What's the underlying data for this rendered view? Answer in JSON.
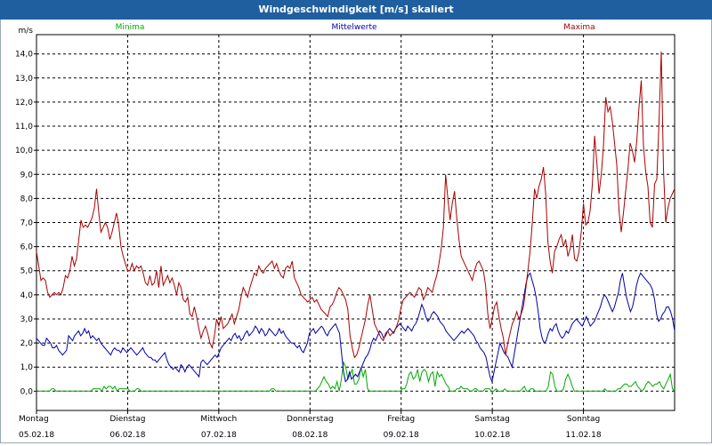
{
  "window": {
    "title": "Windgeschwindigkeit [m/s] skaliert"
  },
  "chart_data": {
    "type": "line",
    "title": "Windgeschwindigkeit [m/s] skaliert",
    "ylabel": "m/s",
    "xlabel": "",
    "ylim": [
      -0.8,
      14.8
    ],
    "yticks": [
      "0,0",
      "1,0",
      "2,0",
      "3,0",
      "4,0",
      "5,0",
      "6,0",
      "7,0",
      "8,0",
      "9,0",
      "10,0",
      "11,0",
      "12,0",
      "13,0",
      "14,0"
    ],
    "days": [
      {
        "weekday": "Montag",
        "date": "05.02.18"
      },
      {
        "weekday": "Dienstag",
        "date": "06.02.18"
      },
      {
        "weekday": "Mittwoch",
        "date": "07.02.18"
      },
      {
        "weekday": "Donnerstag",
        "date": "08.02.18"
      },
      {
        "weekday": "Freitag",
        "date": "09.02.18"
      },
      {
        "weekday": "Samstag",
        "date": "10.02.18"
      },
      {
        "weekday": "Sonntag",
        "date": "11.02.18"
      }
    ],
    "grid": true,
    "series": [
      {
        "name": "Minima",
        "color": "#00aa00",
        "values": [
          0.0,
          0.0,
          0.0,
          0.0,
          0.0,
          0.0,
          0.0,
          0.1,
          0.1,
          0.0,
          0.0,
          0.0,
          0.0,
          0.0,
          0.0,
          0.0,
          0.0,
          0.0,
          0.0,
          0.0,
          0.0,
          0.0,
          0.0,
          0.0,
          0.0,
          0.0,
          0.1,
          0.1,
          0.1,
          0.1,
          0.0,
          0.2,
          0.1,
          0.2,
          0.2,
          0.1,
          0.2,
          0.0,
          0.1,
          0.1,
          0.1,
          0.1,
          0.1,
          0.0,
          0.0,
          0.0,
          0.1,
          0.1,
          0.0,
          0.0,
          0.0,
          0.0,
          0.0,
          0.0,
          0.0,
          0.0,
          0.0,
          0.0,
          0.0,
          0.0,
          0.0,
          0.0,
          0.0,
          0.0,
          0.0,
          0.0,
          0.0,
          0.0,
          0.0,
          0.0,
          0.0,
          0.0,
          0.0,
          0.0,
          0.0,
          0.0,
          0.0,
          0.0,
          0.0,
          0.0,
          0.0,
          0.0,
          0.0,
          0.0,
          0.0,
          0.0,
          0.0,
          0.0,
          0.0,
          0.0,
          0.0,
          0.0,
          0.0,
          0.0,
          0.0,
          0.0,
          0.0,
          0.0,
          0.0,
          0.0,
          0.0,
          0.0,
          0.0,
          0.0,
          0.0,
          0.0,
          0.0,
          0.0,
          0.1,
          0.1,
          0.0,
          0.0,
          0.0,
          0.0,
          0.0,
          0.0,
          0.0,
          0.0,
          0.0,
          0.0,
          0.0,
          0.0,
          0.0,
          0.0,
          0.0,
          0.0,
          0.0,
          0.0,
          0.0,
          0.1,
          0.2,
          0.4,
          0.6,
          0.4,
          0.3,
          0.1,
          0.2,
          0.1,
          0.4,
          0.0,
          0.5,
          1.2,
          1.0,
          0.5,
          0.7,
          0.9,
          0.3,
          0.3,
          0.5,
          1.0,
          0.6,
          0.9,
          0.1,
          0.0,
          0.0,
          0.0,
          0.0,
          0.0,
          0.0,
          0.0,
          0.0,
          0.0,
          0.0,
          0.0,
          0.0,
          0.0,
          0.0,
          0.0,
          0.1,
          0.1,
          0.3,
          0.7,
          0.8,
          0.5,
          0.6,
          0.9,
          0.4,
          0.8,
          0.9,
          0.8,
          0.4,
          0.7,
          0.8,
          0.2,
          0.8,
          0.6,
          0.7,
          0.5,
          0.3,
          0.2,
          0.0,
          0.0,
          0.0,
          0.1,
          0.1,
          0.2,
          0.1,
          0.1,
          0.1,
          0.0,
          0.0,
          0.1,
          0.1,
          0.0,
          0.0,
          0.0,
          0.1,
          0.1,
          0.1,
          0.0,
          0.0,
          0.1,
          0.0,
          0.0,
          0.0,
          0.1,
          0.0,
          0.0,
          0.0,
          0.0,
          0.0,
          0.0,
          0.0,
          0.1,
          0.2,
          0.0,
          0.0,
          0.1,
          0.1,
          0.0,
          0.0,
          0.0,
          0.0,
          0.0,
          0.0,
          0.2,
          0.8,
          0.7,
          0.2,
          0.0,
          0.0,
          0.0,
          0.1,
          0.5,
          0.7,
          0.5,
          0.2,
          0.0,
          0.0,
          0.0,
          0.0,
          0.0,
          0.0,
          0.0,
          0.0,
          0.0,
          0.0,
          0.0,
          0.0,
          0.0,
          0.0,
          0.1,
          0.0,
          0.0,
          0.0,
          0.0,
          0.0,
          0.1,
          0.1,
          0.2,
          0.3,
          0.3,
          0.2,
          0.2,
          0.3,
          0.4,
          0.2,
          0.1,
          0.0,
          0.1,
          0.3,
          0.4,
          0.3,
          0.2,
          0.3,
          0.3,
          0.4,
          0.2,
          0.1,
          0.3,
          0.5,
          0.7,
          0.1,
          0.0
        ]
      },
      {
        "name": "Mittelwerte",
        "color": "#0000aa",
        "values": [
          2.2,
          2.1,
          2.0,
          1.9,
          1.9,
          2.2,
          2.1,
          2.0,
          1.8,
          1.8,
          1.9,
          1.7,
          1.6,
          1.5,
          1.6,
          1.7,
          2.3,
          2.2,
          2.1,
          2.3,
          2.4,
          2.5,
          2.3,
          2.4,
          2.6,
          2.4,
          2.5,
          2.2,
          2.3,
          2.2,
          2.1,
          2.2,
          2.0,
          1.9,
          1.8,
          1.7,
          1.6,
          1.5,
          1.7,
          1.8,
          1.7,
          1.7,
          1.6,
          1.8,
          1.7,
          1.6,
          1.7,
          1.8,
          1.7,
          1.6,
          1.5,
          1.6,
          1.7,
          1.8,
          1.6,
          1.5,
          1.4,
          1.4,
          1.3,
          1.3,
          1.2,
          1.3,
          1.4,
          1.5,
          1.6,
          1.3,
          1.1,
          1.0,
          0.9,
          1.0,
          0.9,
          0.8,
          1.1,
          1.0,
          0.8,
          1.0,
          1.1,
          1.0,
          0.9,
          0.8,
          0.7,
          0.6,
          1.2,
          1.3,
          1.2,
          1.1,
          1.2,
          1.3,
          1.4,
          1.5,
          1.4,
          1.6,
          1.8,
          1.9,
          2.0,
          2.1,
          2.2,
          2.1,
          2.3,
          2.4,
          2.2,
          2.3,
          2.1,
          2.2,
          2.4,
          2.5,
          2.3,
          2.4,
          2.5,
          2.7,
          2.6,
          2.4,
          2.6,
          2.5,
          2.3,
          2.4,
          2.6,
          2.5,
          2.4,
          2.3,
          2.4,
          2.6,
          2.4,
          2.5,
          2.3,
          2.2,
          2.1,
          2.0,
          2.0,
          1.9,
          1.8,
          1.9,
          1.7,
          1.6,
          1.8,
          2.0,
          2.4,
          2.5,
          2.6,
          2.4,
          2.5,
          2.6,
          2.7,
          2.6,
          2.4,
          2.3,
          2.5,
          2.6,
          2.7,
          2.8,
          2.6,
          2.4,
          1.6,
          0.8,
          0.4,
          0.5,
          0.8,
          0.5,
          0.6,
          0.7,
          0.6,
          0.8,
          1.0,
          1.2,
          1.4,
          1.5,
          1.7,
          2.0,
          2.2,
          2.1,
          2.3,
          2.5,
          2.4,
          2.2,
          2.3,
          2.5,
          2.6,
          2.5,
          2.4,
          2.6,
          2.7,
          2.8,
          2.7,
          2.6,
          2.5,
          2.7,
          2.6,
          2.5,
          2.7,
          2.8,
          3.0,
          3.3,
          3.6,
          3.4,
          3.1,
          2.9,
          3.0,
          3.2,
          3.3,
          3.2,
          3.1,
          2.9,
          2.8,
          2.7,
          2.5,
          2.4,
          2.3,
          2.2,
          2.1,
          2.2,
          2.3,
          2.4,
          2.5,
          2.4,
          2.5,
          2.6,
          2.5,
          2.4,
          2.3,
          2.1,
          2.0,
          1.8,
          1.7,
          1.6,
          1.4,
          1.0,
          0.6,
          0.4,
          0.8,
          1.2,
          1.6,
          2.0,
          1.8,
          1.6,
          1.5,
          1.4,
          1.2,
          1.0,
          1.5,
          2.0,
          2.5,
          3.0,
          3.5,
          4.0,
          4.5,
          4.8,
          4.9,
          4.6,
          4.3,
          3.9,
          3.3,
          2.6,
          2.2,
          2.0,
          2.1,
          2.4,
          2.6,
          2.5,
          2.7,
          2.8,
          2.5,
          2.3,
          2.2,
          2.3,
          2.5,
          2.4,
          2.6,
          2.8,
          2.9,
          3.0,
          2.9,
          2.8,
          2.7,
          2.9,
          3.1,
          2.9,
          2.7,
          2.8,
          2.9,
          3.1,
          3.3,
          3.5,
          3.8,
          4.0,
          3.9,
          3.7,
          3.5,
          3.3,
          3.5,
          3.8,
          4.1,
          4.6,
          4.9,
          4.4,
          3.9,
          3.6,
          3.3,
          3.5,
          3.9,
          4.4,
          4.7,
          4.9,
          4.8,
          4.7,
          4.6,
          4.5,
          4.4,
          4.2,
          3.8,
          3.2,
          2.9,
          3.0,
          3.2,
          3.3,
          3.5,
          3.5,
          3.3,
          3.0,
          2.5
        ]
      },
      {
        "name": "Maxima",
        "color": "#aa0000",
        "values": [
          5.8,
          5.2,
          4.6,
          4.7,
          4.6,
          4.1,
          3.9,
          4.0,
          4.1,
          4.0,
          4.1,
          4.0,
          4.3,
          4.8,
          4.7,
          5.0,
          5.6,
          5.2,
          5.5,
          6.3,
          7.1,
          6.8,
          6.9,
          6.8,
          7.0,
          7.2,
          7.6,
          8.4,
          7.4,
          6.6,
          6.8,
          7.0,
          6.8,
          6.3,
          6.6,
          7.0,
          7.4,
          6.9,
          6.0,
          5.6,
          5.3,
          5.0,
          5.0,
          5.3,
          5.0,
          5.2,
          5.1,
          5.2,
          4.9,
          4.5,
          4.4,
          4.8,
          4.4,
          4.5,
          5.0,
          4.3,
          5.2,
          4.4,
          4.6,
          4.8,
          4.5,
          4.7,
          4.4,
          4.0,
          4.5,
          4.3,
          3.8,
          3.7,
          3.9,
          3.2,
          3.1,
          3.5,
          3.1,
          2.6,
          2.2,
          2.5,
          2.7,
          2.4,
          2.0,
          1.8,
          2.3,
          3.0,
          2.7,
          3.1,
          2.6,
          2.7,
          2.8,
          3.0,
          3.2,
          2.8,
          3.1,
          3.4,
          3.9,
          4.3,
          4.1,
          3.9,
          4.3,
          4.6,
          4.9,
          4.8,
          5.2,
          5.0,
          4.9,
          5.1,
          5.2,
          5.3,
          5.4,
          5.1,
          5.3,
          5.0,
          4.8,
          4.7,
          5.1,
          5.2,
          5.1,
          5.4,
          4.7,
          4.5,
          4.3,
          4.0,
          3.9,
          3.8,
          3.7,
          3.8,
          3.9,
          3.7,
          3.8,
          3.6,
          3.4,
          3.3,
          3.2,
          3.1,
          3.5,
          3.6,
          3.8,
          4.1,
          4.3,
          4.2,
          4.0,
          3.8,
          3.4,
          2.3,
          1.8,
          1.4,
          1.5,
          1.8,
          2.2,
          2.6,
          3.0,
          3.6,
          4.0,
          3.4,
          2.8,
          2.6,
          2.4,
          2.2,
          2.1,
          2.4,
          2.5,
          2.3,
          2.4,
          2.5,
          2.7,
          3.0,
          3.5,
          3.8,
          3.9,
          4.0,
          4.1,
          4.0,
          3.9,
          4.1,
          4.3,
          4.2,
          3.8,
          4.0,
          4.3,
          4.2,
          4.1,
          4.5,
          4.8,
          5.3,
          5.9,
          6.8,
          9.0,
          8.0,
          7.1,
          7.8,
          8.3,
          7.2,
          6.3,
          5.6,
          5.4,
          5.2,
          5.0,
          4.8,
          4.6,
          5.0,
          5.3,
          5.4,
          5.2,
          5.0,
          4.4,
          3.2,
          2.6,
          3.0,
          3.5,
          3.7,
          3.1,
          2.6,
          2.2,
          1.5,
          2.0,
          2.4,
          2.8,
          3.0,
          3.3,
          3.0,
          3.2,
          3.5,
          4.2,
          5.0,
          5.8,
          7.0,
          8.4,
          8.0,
          8.5,
          8.8,
          9.3,
          8.2,
          6.2,
          5.4,
          4.9,
          5.8,
          6.0,
          6.3,
          6.5,
          6.0,
          6.3,
          5.6,
          5.9,
          6.5,
          5.5,
          5.4,
          5.8,
          6.6,
          7.8,
          6.9,
          7.0,
          7.5,
          8.6,
          10.6,
          9.5,
          8.2,
          9.0,
          10.2,
          12.2,
          11.6,
          11.8,
          11.2,
          10.3,
          9.4,
          7.5,
          6.6,
          7.4,
          8.3,
          9.2,
          10.3,
          10.0,
          9.5,
          10.4,
          11.8,
          12.9,
          10.2,
          9.1,
          8.5,
          7.0,
          6.8,
          8.6,
          8.8,
          11.2,
          14.1,
          9.2,
          7.0,
          7.6,
          8.0,
          8.2,
          8.4
        ]
      }
    ]
  }
}
